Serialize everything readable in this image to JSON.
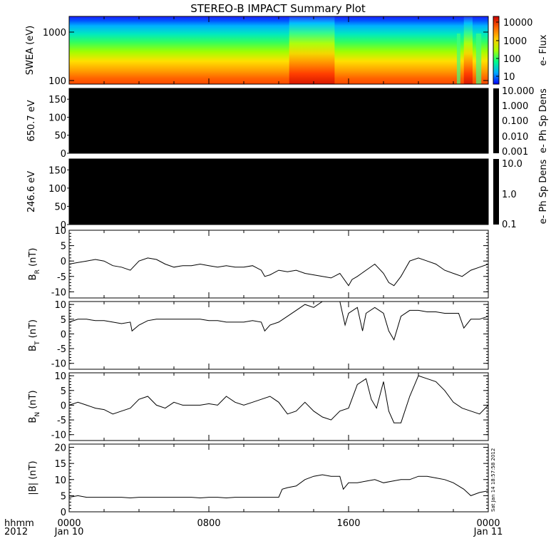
{
  "title": "STEREO-B IMPACT Summary Plot",
  "footer": {
    "row1_left": "hhmm",
    "row2_left": "2012",
    "ticks": [
      "0000",
      "0800",
      "1600",
      "0000"
    ],
    "dates": [
      "Jan 10",
      "",
      "",
      "Jan 11"
    ]
  },
  "timestamp_text": "Sat Jan 14 18:57:58 2012",
  "chart_data": [
    {
      "type": "heatmap",
      "panel": "swea",
      "ylabel": "SWEA (eV)",
      "ytick_labels": [
        "1000",
        "100"
      ],
      "colorbar": {
        "label": "e- Flux",
        "tick_labels": [
          "10000",
          "1000",
          "100",
          "10"
        ],
        "scale": "log",
        "colors": [
          "#0000ff",
          "#00aaff",
          "#00ff88",
          "#aaff00",
          "#ffcc00",
          "#ff6600",
          "#cc0000"
        ]
      },
      "x_range_hours": [
        0,
        24
      ],
      "enhancement_intervals_hours": [
        [
          12.6,
          15.2
        ],
        [
          22.6,
          23.1
        ]
      ],
      "dropout_intervals_hours": [
        [
          22.2,
          22.4
        ],
        [
          23.3,
          23.6
        ]
      ]
    },
    {
      "type": "heatmap",
      "panel": "pad650",
      "ylabel": "650.7 eV",
      "ytick_labels": [
        "150",
        "100",
        "50",
        "0"
      ],
      "colorbar": {
        "label": "e- Ph Sp Dens",
        "tick_labels": [
          "10.000",
          "1.000",
          "0.100",
          "0.010",
          "0.001"
        ]
      },
      "fill_color": "#000000"
    },
    {
      "type": "heatmap",
      "panel": "pad246",
      "ylabel": "246.6 eV",
      "ytick_labels": [
        "150",
        "100",
        "50",
        "0"
      ],
      "colorbar": {
        "label": "e- Ph Sp Dens",
        "tick_labels": [
          "10.0",
          "1.0",
          "0.1"
        ]
      },
      "fill_color": "#000000"
    },
    {
      "type": "line",
      "panel": "br",
      "ylabel_main": "B",
      "ylabel_sub": "R",
      "ylabel_unit": "(nT)",
      "ylim": [
        -12,
        10
      ],
      "ytick_labels": [
        "10",
        "5",
        "0",
        "-5",
        "-10"
      ],
      "x": [
        0,
        0.5,
        1,
        1.5,
        2,
        2.5,
        3,
        3.5,
        4,
        4.5,
        5,
        5.5,
        6,
        6.5,
        7,
        7.5,
        8,
        8.5,
        9,
        9.5,
        10,
        10.5,
        11,
        11.2,
        11.5,
        12,
        12.5,
        13,
        13.5,
        14,
        14.5,
        15,
        15.5,
        16,
        16.2,
        16.5,
        17,
        17.5,
        18,
        18.3,
        18.6,
        19,
        19.5,
        20,
        20.5,
        21,
        21.5,
        22,
        22.5,
        23,
        23.5,
        24
      ],
      "y": [
        -1,
        -0.5,
        0,
        0.5,
        0,
        -1.5,
        -2,
        -3,
        0,
        1,
        0.5,
        -1,
        -2,
        -1.5,
        -1.5,
        -1,
        -1.5,
        -2,
        -1.5,
        -2,
        -2,
        -1.5,
        -3,
        -5,
        -4.5,
        -3,
        -3.5,
        -3,
        -4,
        -4.5,
        -5,
        -5.5,
        -4,
        -8,
        -6,
        -5,
        -3,
        -1,
        -4,
        -7,
        -8,
        -5,
        0,
        1,
        0,
        -1,
        -3,
        -4,
        -5,
        -3,
        -2,
        -1
      ]
    },
    {
      "type": "line",
      "panel": "bt",
      "ylabel_main": "B",
      "ylabel_sub": "T",
      "ylabel_unit": "(nT)",
      "ylim": [
        -12,
        11
      ],
      "ytick_labels": [
        "10",
        "5",
        "0",
        "-5",
        "-10"
      ],
      "x": [
        0,
        0.5,
        1,
        1.5,
        2,
        2.5,
        3,
        3.5,
        3.6,
        4,
        4.5,
        5,
        5.5,
        6,
        6.5,
        7,
        7.5,
        8,
        8.5,
        9,
        9.5,
        10,
        10.5,
        11,
        11.2,
        11.5,
        12,
        12.5,
        13,
        13.5,
        14,
        14.5,
        15,
        15.5,
        15.8,
        16,
        16.5,
        16.8,
        17,
        17.5,
        18,
        18.3,
        18.6,
        19,
        19.5,
        20,
        20.5,
        21,
        21.5,
        22,
        22.3,
        22.6,
        23,
        23.5,
        24
      ],
      "y": [
        4,
        5,
        5,
        4.5,
        4.5,
        4,
        3.5,
        4,
        1,
        3,
        4.5,
        5,
        5,
        5,
        5,
        5,
        5,
        4.5,
        4.5,
        4,
        4,
        4,
        4.5,
        4,
        1,
        3,
        4,
        6,
        8,
        10,
        9,
        11,
        11,
        11,
        3,
        7,
        9,
        1,
        7,
        9,
        7,
        1,
        -2,
        6,
        8,
        8,
        7.5,
        7.5,
        7,
        7,
        7,
        2,
        5,
        5,
        6
      ]
    },
    {
      "type": "line",
      "panel": "bn",
      "ylabel_main": "B",
      "ylabel_sub": "N",
      "ylabel_unit": "(nT)",
      "ylim": [
        -12,
        11
      ],
      "ytick_labels": [
        "10",
        "5",
        "0",
        "-5",
        "-10"
      ],
      "x": [
        0,
        0.5,
        1,
        1.5,
        2,
        2.5,
        3,
        3.5,
        4,
        4.5,
        5,
        5.5,
        6,
        6.5,
        7,
        7.5,
        8,
        8.5,
        9,
        9.5,
        10,
        10.5,
        11,
        11.5,
        12,
        12.5,
        13,
        13.5,
        14,
        14.5,
        15,
        15.5,
        16,
        16.5,
        17,
        17.3,
        17.6,
        18,
        18.3,
        18.6,
        19,
        19.5,
        20,
        20.5,
        21,
        21.5,
        22,
        22.5,
        23,
        23.5,
        24
      ],
      "y": [
        0,
        1,
        0,
        -1,
        -1.5,
        -3,
        -2,
        -1,
        2,
        3,
        0,
        -1,
        1,
        0,
        0,
        0,
        0.5,
        0,
        3,
        1,
        0,
        1,
        2,
        3,
        1,
        -3,
        -2,
        1,
        -2,
        -4,
        -5,
        -2,
        -1,
        7,
        9,
        2,
        -1,
        8,
        -2,
        -6,
        -6,
        3,
        10,
        9,
        8,
        5,
        1,
        -1,
        -2,
        -3,
        0
      ]
    },
    {
      "type": "line",
      "panel": "bmag",
      "ylabel": "|B| (nT)",
      "ylim": [
        0,
        21
      ],
      "ytick_labels": [
        "20",
        "15",
        "10",
        "5",
        "0"
      ],
      "x": [
        0,
        0.5,
        1,
        1.5,
        2,
        2.5,
        3,
        3.5,
        4,
        4.5,
        5,
        5.5,
        6,
        6.5,
        7,
        7.5,
        8,
        8.5,
        9,
        9.5,
        10,
        10.5,
        11,
        11.5,
        12,
        12.2,
        12.5,
        13,
        13.5,
        14,
        14.5,
        15,
        15.5,
        15.7,
        16,
        16.5,
        17,
        17.5,
        18,
        18.5,
        19,
        19.5,
        20,
        20.5,
        21,
        21.5,
        22,
        22.3,
        22.6,
        23,
        23.5,
        24
      ],
      "y": [
        4.5,
        5,
        4.5,
        4.5,
        4.5,
        4.5,
        4.5,
        4.3,
        4.5,
        4.5,
        4.5,
        4.5,
        4.5,
        4.5,
        4.5,
        4.3,
        4.5,
        4.5,
        4.3,
        4.5,
        4.5,
        4.5,
        4.5,
        4.5,
        4.5,
        7,
        7.5,
        8,
        10,
        11,
        11.5,
        11,
        11,
        7,
        9,
        9,
        9.5,
        10,
        9,
        9.5,
        10,
        10,
        11,
        11,
        10.5,
        10,
        9,
        8,
        7,
        5,
        6,
        6.5
      ]
    }
  ]
}
